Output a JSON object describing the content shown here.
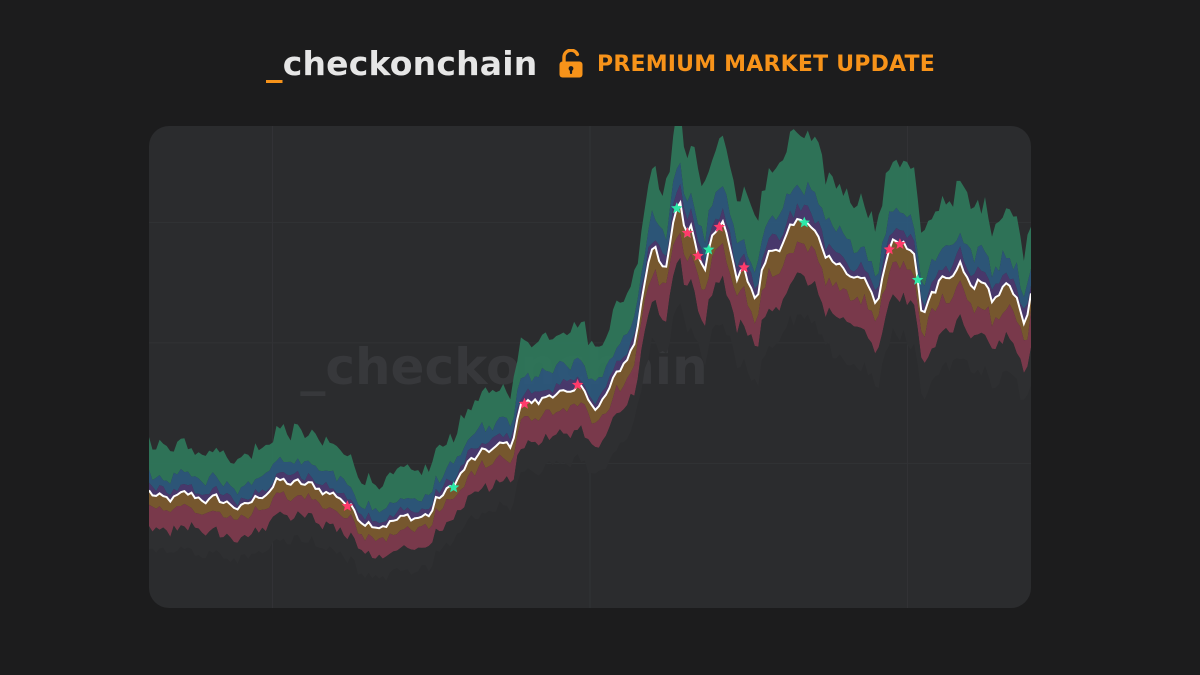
{
  "header": {
    "brand_prefix": "_",
    "brand_name": "checkonchain",
    "badge_icon": "unlocked-padlock-icon",
    "badge_label": "PREMIUM MARKET UPDATE"
  },
  "watermark": {
    "text": "_checkonchain"
  },
  "colors": {
    "background": "#1c1c1d",
    "panel": "#2b2c2e",
    "accent": "#f7931a",
    "band_green": "#2f7a5c",
    "band_blue": "#2c5a80",
    "band_purple": "#4b3a72",
    "band_orange": "#7a5a2e",
    "band_red": "#7d3a4d",
    "price_line": "#ffffff",
    "buy_star": "#2ee8a8",
    "sell_star": "#ff3b6b"
  },
  "chart_data": {
    "type": "area",
    "title": "",
    "xlabel": "",
    "ylabel": "",
    "grid": true,
    "legend": "none",
    "n_points": 250,
    "price": [
      [
        0,
        3.85
      ],
      [
        5,
        3.5
      ],
      [
        12,
        3.7
      ],
      [
        20,
        3.6
      ],
      [
        30,
        3.3
      ],
      [
        40,
        4.2
      ],
      [
        52,
        4.0
      ],
      [
        60,
        3.7
      ],
      [
        66,
        3.0
      ],
      [
        72,
        2.85
      ],
      [
        80,
        2.95
      ],
      [
        88,
        3.1
      ],
      [
        90,
        3.6
      ],
      [
        94,
        3.9
      ],
      [
        100,
        4.8
      ],
      [
        108,
        5.3
      ],
      [
        114,
        5.4
      ],
      [
        116,
        6.9
      ],
      [
        122,
        6.8
      ],
      [
        128,
        7.3
      ],
      [
        132,
        6.9
      ],
      [
        136,
        7.4
      ],
      [
        140,
        6.5
      ],
      [
        144,
        7.2
      ],
      [
        148,
        8.0
      ],
      [
        152,
        8.8
      ],
      [
        156,
        11.4
      ],
      [
        158,
        12.3
      ],
      [
        160,
        11.6
      ],
      [
        162,
        11.2
      ],
      [
        164,
        12.7
      ],
      [
        166,
        13.4
      ],
      [
        168,
        12.3
      ],
      [
        170,
        12.8
      ],
      [
        172,
        11.5
      ],
      [
        174,
        11.4
      ],
      [
        176,
        12.4
      ],
      [
        178,
        12.8
      ],
      [
        180,
        13.2
      ],
      [
        182,
        11.9
      ],
      [
        184,
        10.8
      ],
      [
        186,
        11.5
      ],
      [
        188,
        10.6
      ],
      [
        190,
        10.2
      ],
      [
        192,
        11.3
      ],
      [
        194,
        11.7
      ],
      [
        196,
        12.0
      ],
      [
        198,
        11.8
      ],
      [
        200,
        12.6
      ],
      [
        204,
        12.9
      ],
      [
        208,
        12.5
      ],
      [
        212,
        11.7
      ],
      [
        216,
        11.6
      ],
      [
        220,
        10.9
      ],
      [
        224,
        11.0
      ],
      [
        228,
        10.0
      ],
      [
        232,
        12.0
      ],
      [
        236,
        12.3
      ],
      [
        240,
        11.4
      ],
      [
        242,
        9.6
      ],
      [
        244,
        10.4
      ],
      [
        246,
        10.5
      ],
      [
        248,
        10.9
      ],
      [
        250,
        10.6
      ],
      [
        254,
        11.3
      ],
      [
        258,
        10.4
      ],
      [
        260,
        11.0
      ],
      [
        264,
        10.2
      ],
      [
        268,
        10.7
      ],
      [
        272,
        10.0
      ],
      [
        274,
        9.5
      ],
      [
        276,
        10.4
      ]
    ],
    "series": [
      {
        "name": "",
        "band": "green",
        "offset": 0.95
      },
      {
        "name": "",
        "band": "blue",
        "offset": 0.55
      },
      {
        "name": "",
        "band": "purple",
        "offset": 0.25
      },
      {
        "name": "",
        "band": "price",
        "offset": 0.0
      },
      {
        "name": "",
        "band": "orange",
        "offset": -0.45
      },
      {
        "name": "",
        "band": "red",
        "offset": -1.1
      },
      {
        "name": "",
        "band": "floor",
        "offset": -1.75
      }
    ],
    "buy_signals": [
      95,
      165,
      169,
      175,
      205,
      241
    ],
    "sell_signals": [
      62,
      118,
      134,
      168,
      172,
      179,
      186,
      232,
      235
    ],
    "ylim": [
      0,
      16
    ]
  }
}
